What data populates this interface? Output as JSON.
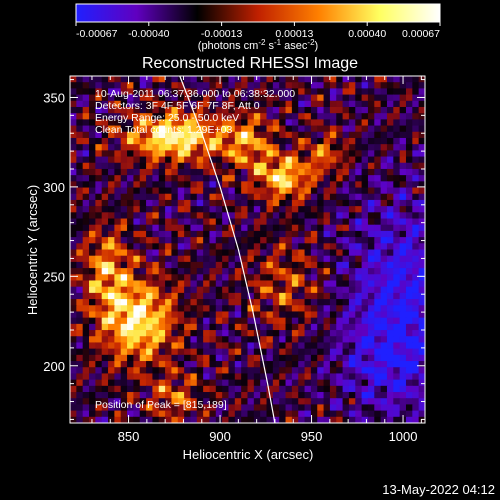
{
  "colorbar": {
    "tick_labels": [
      "-0.00067",
      "-0.00040",
      "-0.00013",
      "0.00013",
      "0.00040",
      "0.00067"
    ],
    "units_base": "(photons cm",
    "units_exp1": "-2",
    "units_mid": " s",
    "units_exp2": "-1",
    "units_asec": " asec",
    "units_exp3": "-2",
    "units_close": ")",
    "colors": [
      "#2020ff",
      "#6000c0",
      "#000000",
      "#c02000",
      "#ff8000",
      "#ffff60",
      "#ffffff"
    ]
  },
  "chart_data": {
    "type": "heatmap",
    "title": "Reconstructed RHESSI Image",
    "xlabel": "Heliocentric X (arcsec)",
    "ylabel": "Heliocentric Y (arcsec)",
    "xlim": [
      818,
      1012
    ],
    "ylim": [
      168,
      362
    ],
    "x_ticks": [
      850,
      900,
      950,
      1000
    ],
    "y_ticks": [
      200,
      250,
      300,
      350
    ],
    "value_range": [
      -0.00067,
      0.00067
    ],
    "peak_position": [
      815,
      189
    ],
    "limb_curve": {
      "x": [
        878,
        890,
        900,
        910,
        918,
        926,
        930
      ],
      "y": [
        362,
        330,
        300,
        265,
        230,
        190,
        168
      ]
    },
    "annotations": {
      "time_range": "10-Aug-2011 06:37:36.000 to 06:38:32.000",
      "detectors": "Detectors: 3F 4F 5F 6F 7F 8F, Att 0",
      "energy_range": "Energy Range: 25.0 - 50.0 keV",
      "clean_counts": "Clean    Total counts: 1.29E+03",
      "peak_label": "Position of Peak = [815,189]"
    }
  },
  "footer": {
    "timestamp": "13-May-2022 04:12"
  }
}
